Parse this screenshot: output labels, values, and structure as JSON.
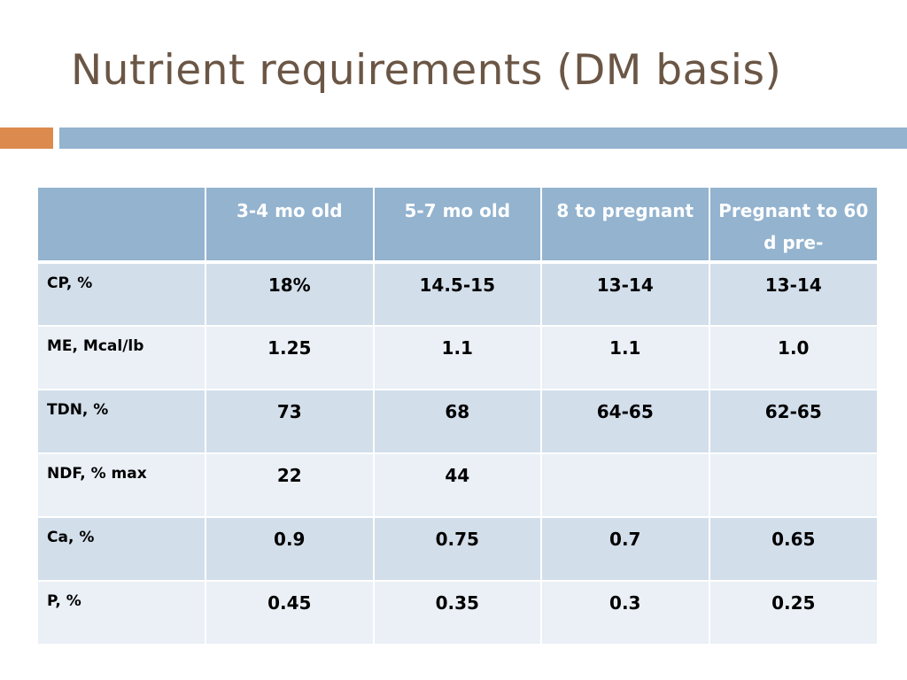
{
  "slide": {
    "title": "Nutrient requirements (DM basis)",
    "colors": {
      "title": "#6b5645",
      "accent_orange": "#dc8a4e",
      "accent_blue": "#93b3cf",
      "row_dark": "#d2deea",
      "row_light": "#eaf0f6"
    }
  },
  "table": {
    "headers": [
      "",
      "3-4 mo old",
      "5-7 mo old",
      "8 to pregnant",
      "Pregnant to 60 d pre-"
    ],
    "rows": [
      {
        "label": "CP, %",
        "values": [
          "18%",
          "14.5-15",
          "13-14",
          "13-14"
        ]
      },
      {
        "label": "ME, Mcal/lb",
        "values": [
          "1.25",
          "1.1",
          "1.1",
          "1.0"
        ]
      },
      {
        "label": "TDN, %",
        "values": [
          "73",
          "68",
          "64-65",
          "62-65"
        ]
      },
      {
        "label": "NDF, % max",
        "values": [
          "22",
          "44",
          "",
          ""
        ]
      },
      {
        "label": "Ca, %",
        "values": [
          "0.9",
          "0.75",
          "0.7",
          "0.65"
        ]
      },
      {
        "label": "P, %",
        "values": [
          "0.45",
          "0.35",
          "0.3",
          "0.25"
        ]
      }
    ]
  }
}
